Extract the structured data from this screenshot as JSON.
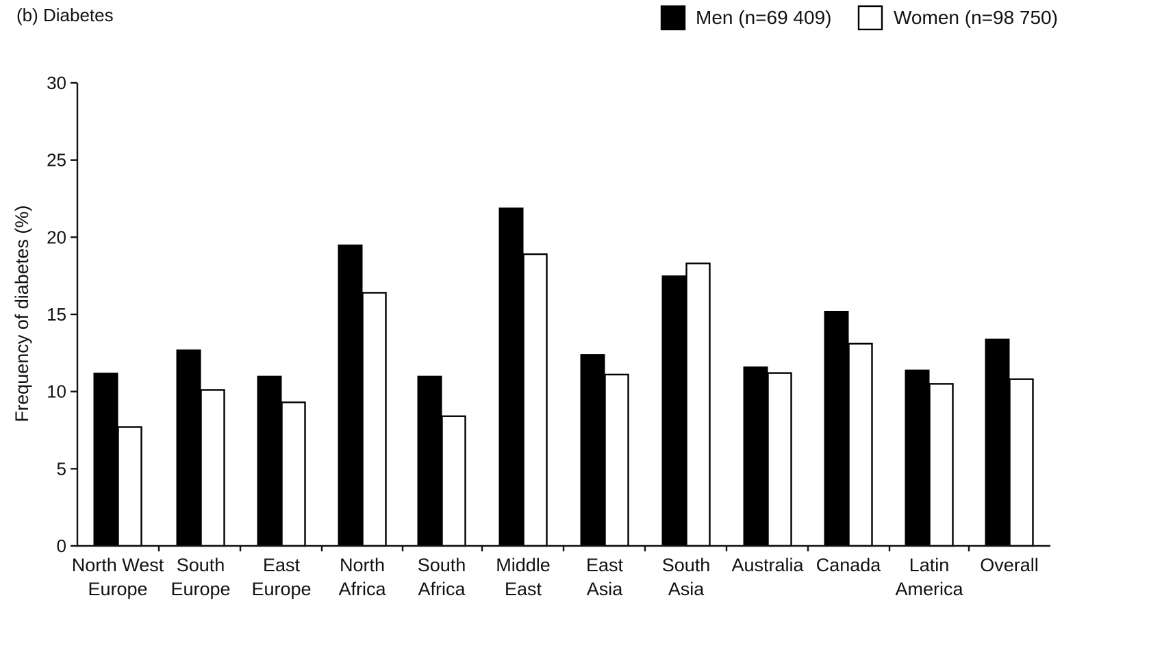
{
  "chart_data": {
    "type": "bar",
    "title": "(b) Diabetes",
    "xlabel": "",
    "ylabel": "Frequency of diabetes (%)",
    "ylim": [
      0,
      30
    ],
    "yticks": [
      "0",
      "5",
      "10",
      "15",
      "20",
      "25",
      "30"
    ],
    "grid": false,
    "legend_position": "top-right",
    "categories": [
      [
        "North West",
        "Europe"
      ],
      [
        "South",
        "Europe"
      ],
      [
        "East",
        "Europe"
      ],
      [
        "North",
        "Africa"
      ],
      [
        "South",
        "Africa"
      ],
      [
        "Middle",
        "East"
      ],
      [
        "East",
        "Asia"
      ],
      [
        "South",
        "Asia"
      ],
      [
        "Australia"
      ],
      [
        "Canada"
      ],
      [
        "Latin",
        "America"
      ],
      [
        "Overall"
      ]
    ],
    "series": [
      {
        "name": "Men (n=69 409)",
        "color": "#000000",
        "values": [
          11.2,
          12.7,
          11.0,
          19.5,
          11.0,
          21.9,
          12.4,
          17.5,
          11.6,
          15.2,
          11.4,
          13.4
        ]
      },
      {
        "name": "Women (n=98 750)",
        "color": "#ffffff",
        "values": [
          7.7,
          10.1,
          9.3,
          16.4,
          8.4,
          18.9,
          11.1,
          18.3,
          11.2,
          13.1,
          10.5,
          10.8
        ]
      }
    ]
  }
}
